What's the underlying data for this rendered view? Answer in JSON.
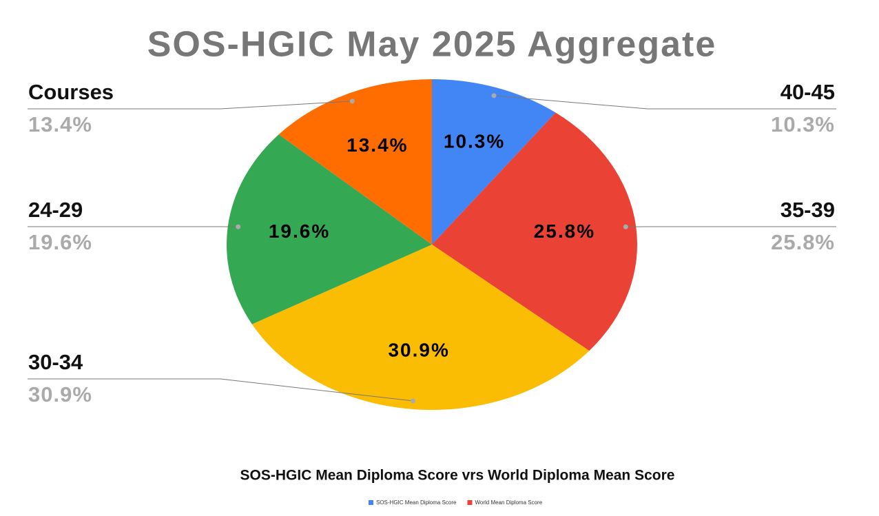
{
  "chart_data": {
    "type": "pie",
    "title": "SOS-HGIC May 2025 Aggregate",
    "subtitle": "SOS-HGIC Mean Diploma Score vrs World Diploma Mean Score",
    "categories": [
      "40-45",
      "35-39",
      "30-34",
      "24-29",
      "Courses"
    ],
    "values": [
      10.3,
      25.8,
      30.9,
      19.6,
      13.4
    ],
    "value_labels": [
      "10.3%",
      "25.8%",
      "30.9%",
      "19.6%",
      "13.4%"
    ],
    "colors": [
      "#4285f4",
      "#ea4335",
      "#fbbc04",
      "#34a853",
      "#ff6d01"
    ],
    "legend": [
      {
        "name": "SOS-HGIC Mean Diploma Score",
        "color": "#4285f4"
      },
      {
        "name": "World Mean Diploma Score",
        "color": "#ea4335"
      }
    ]
  }
}
